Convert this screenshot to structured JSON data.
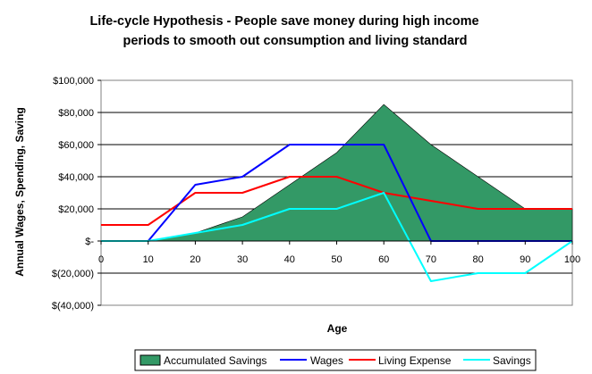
{
  "chart_data": {
    "type": "line",
    "title_lines": [
      "Life-cycle Hypothesis - People save money during high income",
      "periods to smooth out consumption and living standard"
    ],
    "xlabel": "Age",
    "ylabel": "Annual Wages, Spending, Saving",
    "x": [
      0,
      10,
      20,
      30,
      40,
      50,
      60,
      70,
      80,
      90,
      100
    ],
    "x_tick_labels": [
      "0",
      "10",
      "20",
      "30",
      "40",
      "50",
      "60",
      "70",
      "80",
      "90",
      "100"
    ],
    "xlim": [
      0,
      100
    ],
    "ylim": [
      -40000,
      100000
    ],
    "y_ticks": [
      100000,
      80000,
      60000,
      40000,
      20000,
      0,
      -20000,
      -40000
    ],
    "y_tick_labels": [
      "$100,000",
      "$80,000",
      "$60,000",
      "$40,000",
      "$20,000",
      "$-",
      "$(20,000)",
      "$(40,000)"
    ],
    "grid": true,
    "legend_position": "bottom",
    "series": [
      {
        "name": "Accumulated Savings",
        "kind": "area",
        "color": "#339966",
        "values": [
          0,
          0,
          5000,
          15000,
          35000,
          55000,
          85000,
          60000,
          40000,
          20000,
          20000
        ]
      },
      {
        "name": "Wages",
        "kind": "line",
        "color": "#0000ff",
        "values": [
          0,
          0,
          35000,
          40000,
          60000,
          60000,
          60000,
          0,
          0,
          0,
          0
        ]
      },
      {
        "name": "Living Expense",
        "kind": "line",
        "color": "#ff0000",
        "values": [
          10000,
          10000,
          30000,
          30000,
          40000,
          40000,
          30000,
          25000,
          20000,
          20000,
          20000
        ]
      },
      {
        "name": "Savings",
        "kind": "line",
        "color": "#00ffff",
        "values": [
          0,
          0,
          5000,
          10000,
          20000,
          20000,
          30000,
          -25000,
          -20000,
          -20000,
          0
        ]
      }
    ]
  }
}
